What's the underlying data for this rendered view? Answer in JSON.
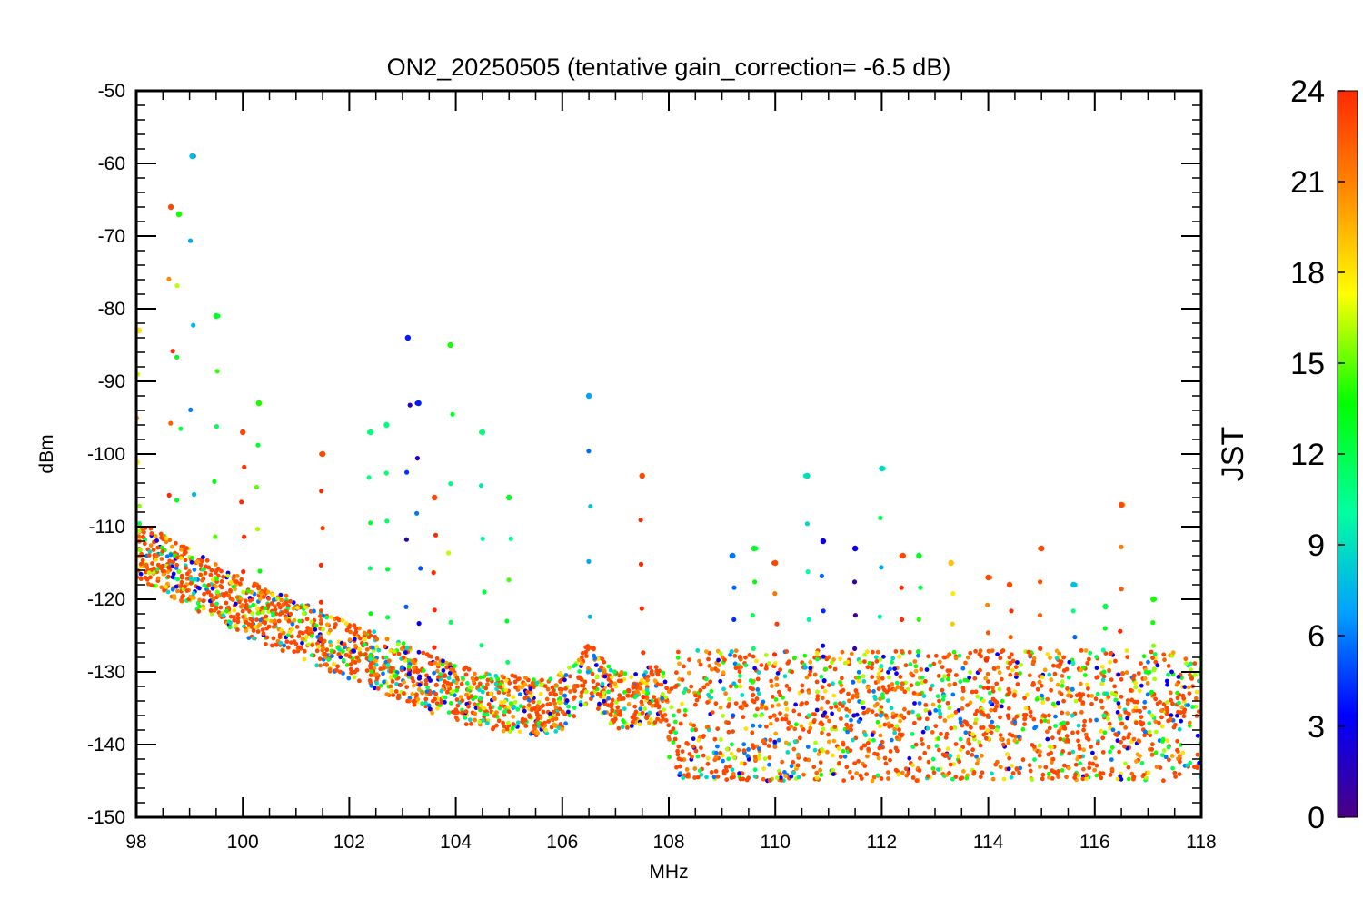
{
  "chart_data": {
    "type": "scatter",
    "title": "ON2_20250505 (tentative gain_correction= -6.5 dB)",
    "xlabel": "MHz",
    "ylabel": "dBm",
    "xlim": [
      98,
      118
    ],
    "ylim": [
      -150,
      -50
    ],
    "x_ticks": [
      98,
      100,
      102,
      104,
      106,
      108,
      110,
      112,
      114,
      116,
      118
    ],
    "y_ticks": [
      -50,
      -60,
      -70,
      -80,
      -90,
      -100,
      -110,
      -120,
      -130,
      -140,
      -150
    ],
    "grid": false,
    "color_scale": {
      "label": "JST",
      "range": [
        0,
        24
      ],
      "ticks": [
        0,
        3,
        6,
        9,
        12,
        15,
        18,
        21,
        24
      ],
      "colors": [
        "#4b0082",
        "#0000ff",
        "#00a0ff",
        "#00ffa0",
        "#00ff00",
        "#ffff00",
        "#ff8c00",
        "#ff2a00"
      ]
    },
    "noise_floor": [
      {
        "x": 98.0,
        "y": -113
      },
      {
        "x": 100.0,
        "y": -121
      },
      {
        "x": 102.0,
        "y": -127
      },
      {
        "x": 104.0,
        "y": -133
      },
      {
        "x": 105.5,
        "y": -135
      },
      {
        "x": 106.0,
        "y": -134
      },
      {
        "x": 106.5,
        "y": -130
      },
      {
        "x": 107.0,
        "y": -134
      },
      {
        "x": 107.9,
        "y": -133
      },
      {
        "x": 108.0,
        "y": -136
      },
      {
        "x": 112.0,
        "y": -136
      },
      {
        "x": 118.0,
        "y": -136
      }
    ],
    "signals": [
      {
        "x": 98.05,
        "y": -83,
        "jst": 18
      },
      {
        "x": 98.65,
        "y": -66,
        "jst": 23
      },
      {
        "x": 98.8,
        "y": -67,
        "jst": 14
      },
      {
        "x": 99.05,
        "y": -59,
        "jst": 8
      },
      {
        "x": 99.5,
        "y": -81,
        "jst": 13
      },
      {
        "x": 100.0,
        "y": -97,
        "jst": 23
      },
      {
        "x": 100.3,
        "y": -93,
        "jst": 14
      },
      {
        "x": 101.5,
        "y": -100,
        "jst": 23
      },
      {
        "x": 102.4,
        "y": -97,
        "jst": 11
      },
      {
        "x": 102.7,
        "y": -96,
        "jst": 11
      },
      {
        "x": 103.1,
        "y": -84,
        "jst": 4
      },
      {
        "x": 103.3,
        "y": -93,
        "jst": 4
      },
      {
        "x": 103.6,
        "y": -106,
        "jst": 23
      },
      {
        "x": 103.9,
        "y": -85,
        "jst": 14
      },
      {
        "x": 104.5,
        "y": -97,
        "jst": 11
      },
      {
        "x": 105.0,
        "y": -106,
        "jst": 13
      },
      {
        "x": 106.5,
        "y": -92,
        "jst": 7
      },
      {
        "x": 107.5,
        "y": -103,
        "jst": 23
      },
      {
        "x": 109.2,
        "y": -114,
        "jst": 6
      },
      {
        "x": 109.6,
        "y": -113,
        "jst": 13
      },
      {
        "x": 110.0,
        "y": -115,
        "jst": 23
      },
      {
        "x": 110.6,
        "y": -103,
        "jst": 9
      },
      {
        "x": 110.9,
        "y": -112,
        "jst": 3
      },
      {
        "x": 111.5,
        "y": -113,
        "jst": 3
      },
      {
        "x": 112.0,
        "y": -102,
        "jst": 9
      },
      {
        "x": 112.4,
        "y": -114,
        "jst": 23
      },
      {
        "x": 112.7,
        "y": -114,
        "jst": 13
      },
      {
        "x": 113.3,
        "y": -115,
        "jst": 19
      },
      {
        "x": 114.0,
        "y": -117,
        "jst": 23
      },
      {
        "x": 114.4,
        "y": -118,
        "jst": 23
      },
      {
        "x": 115.0,
        "y": -113,
        "jst": 23
      },
      {
        "x": 115.6,
        "y": -118,
        "jst": 8
      },
      {
        "x": 116.2,
        "y": -121,
        "jst": 12
      },
      {
        "x": 116.5,
        "y": -107,
        "jst": 23
      },
      {
        "x": 117.1,
        "y": -120,
        "jst": 14
      }
    ]
  }
}
